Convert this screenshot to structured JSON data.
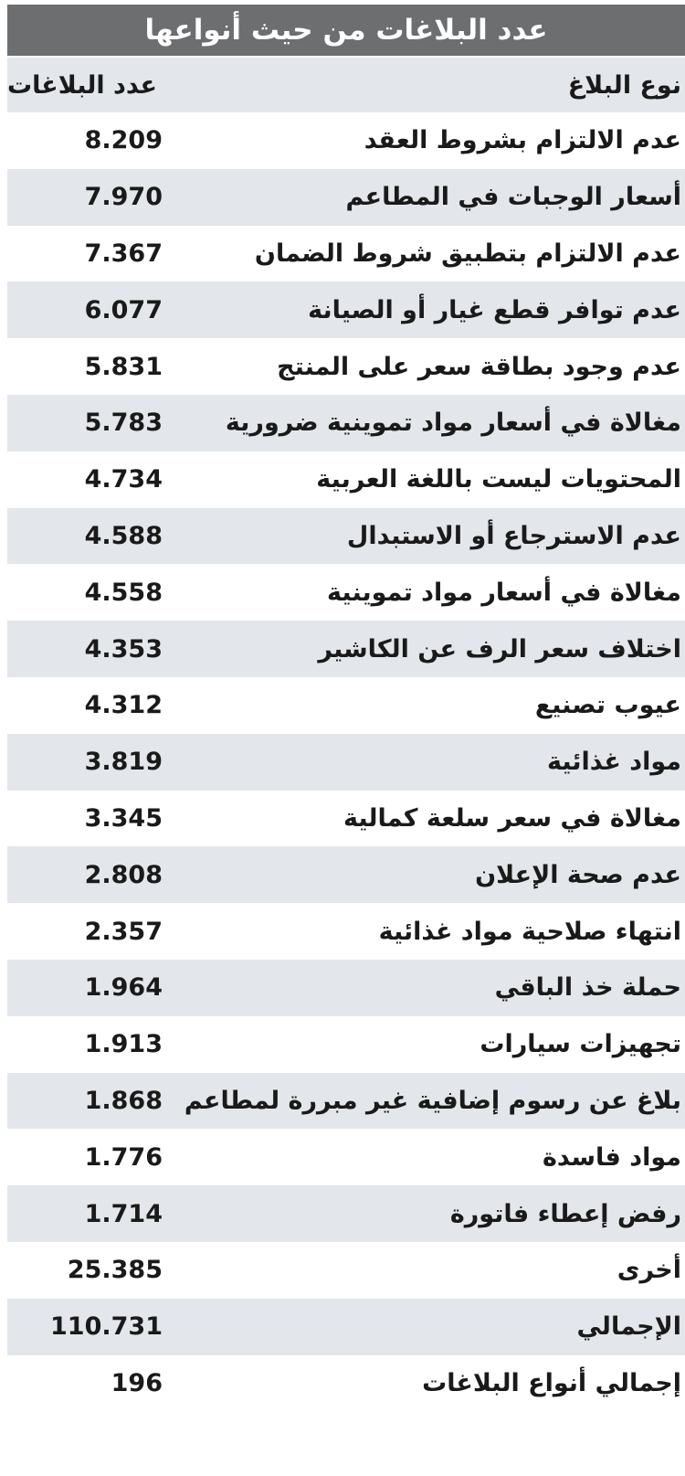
{
  "chart_data": {
    "type": "table",
    "title": "عدد البلاغات من حيث أنواعها",
    "columns": [
      "نوع البلاغ",
      "عدد البلاغات"
    ],
    "rows": [
      [
        "عدم الالتزام بشروط العقد",
        "8.209"
      ],
      [
        "أسعار الوجبات في المطاعم",
        "7.970"
      ],
      [
        "عدم الالتزام بتطبيق شروط الضمان",
        "7.367"
      ],
      [
        "عدم توافر قطع غيار أو الصيانة",
        "6.077"
      ],
      [
        "عدم وجود بطاقة سعر على المنتج",
        "5.831"
      ],
      [
        "مغالاة في أسعار مواد تموينية ضرورية",
        "5.783"
      ],
      [
        "المحتويات ليست باللغة العربية",
        "4.734"
      ],
      [
        "عدم الاسترجاع أو الاستبدال",
        "4.588"
      ],
      [
        "مغالاة في أسعار مواد تموينية",
        "4.558"
      ],
      [
        "اختلاف سعر الرف عن الكاشير",
        "4.353"
      ],
      [
        "عيوب تصنيع",
        "4.312"
      ],
      [
        "مواد غذائية",
        "3.819"
      ],
      [
        "مغالاة في سعر سلعة كمالية",
        "3.345"
      ],
      [
        "عدم صحة الإعلان",
        "2.808"
      ],
      [
        "انتهاء صلاحية مواد غذائية",
        "2.357"
      ],
      [
        "حملة خذ الباقي",
        "1.964"
      ],
      [
        "تجهيزات سيارات",
        "1.913"
      ],
      [
        "بلاغ عن رسوم إضافية غير مبررة لمطاعم",
        "1.868"
      ],
      [
        "مواد فاسدة",
        "1.776"
      ],
      [
        "رفض إعطاء فاتورة",
        "1.714"
      ],
      [
        "أخرى",
        "25.385"
      ],
      [
        "الإجمالي",
        "110.731"
      ],
      [
        "إجمالي أنواع البلاغات",
        "196"
      ]
    ],
    "colors": {
      "title_bg": "#6d6e70",
      "stripe": "#e3e6ea",
      "text": "#1a1a1a"
    }
  }
}
